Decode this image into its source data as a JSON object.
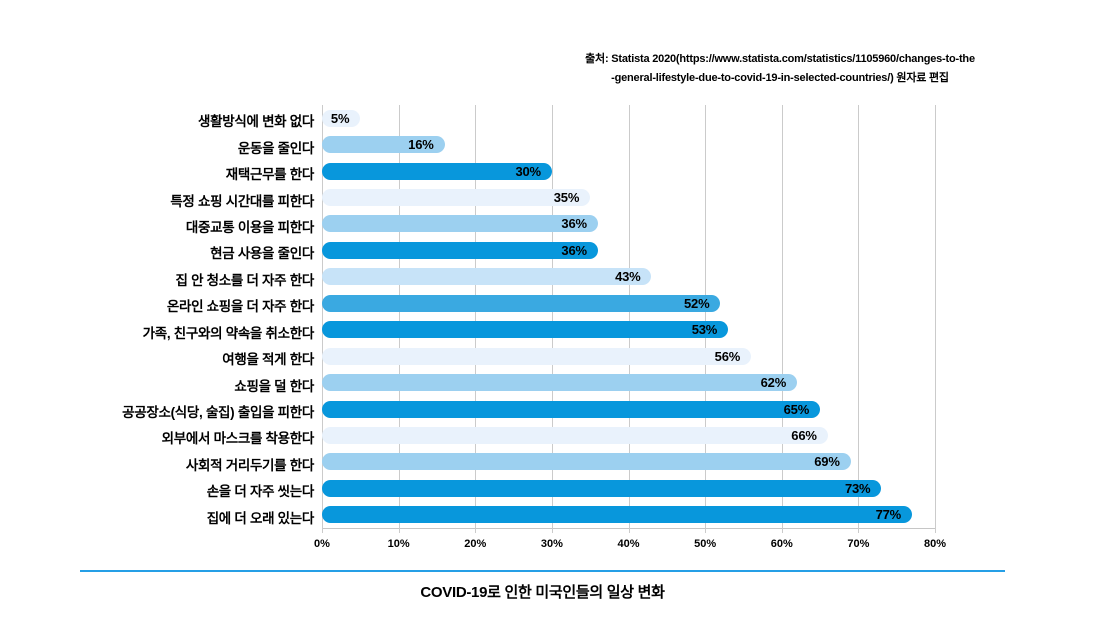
{
  "source": {
    "line1": "출처: Statista 2020(https://www.statista.com/statistics/1105960/changes-to-the",
    "line2": "-general-lifestyle-due-to-covid-19-in-selected-countries/) 원자료 편집"
  },
  "footer": {
    "title": "COVID-19로 인한 미국인들의 일상 변화"
  },
  "colors": {
    "strong_blue": "#0897DC",
    "light_blue": "#9CD0F0",
    "palest_blue": "#E9F2FC",
    "pale_blue": "#C7E3F8",
    "medium_blue": "#3AA9E1",
    "divider_blue": "#259FE6",
    "grid_gray": "#CBCBCB"
  },
  "chart_data": {
    "type": "bar",
    "orientation": "horizontal",
    "title": "COVID-19로 인한 미국인들의 일상 변화",
    "xlim": [
      0,
      80
    ],
    "x_ticks": [
      "0%",
      "10%",
      "20%",
      "30%",
      "40%",
      "50%",
      "60%",
      "70%",
      "80%"
    ],
    "grid": true,
    "legend": false,
    "categories": [
      "생활방식에 변화 없다",
      "운동을 줄인다",
      "재택근무를 한다",
      "특정 쇼핑 시간대를 피한다",
      "대중교통 이용을 피한다",
      "현금 사용을 줄인다",
      "집 안 청소를 더 자주 한다",
      "온라인 쇼핑을 더 자주 한다",
      "가족, 친구와의 약속을 취소한다",
      "여행을 적게 한다",
      "쇼핑을 덜 한다",
      "공공장소(식당, 술집) 출입을 피한다",
      "외부에서 마스크를 착용한다",
      "사회적 거리두기를 한다",
      "손을 더 자주 씻는다",
      "집에 더 오래 있는다"
    ],
    "values": [
      5,
      16,
      30,
      35,
      36,
      36,
      43,
      52,
      53,
      56,
      62,
      65,
      66,
      69,
      73,
      77
    ],
    "value_labels": [
      "5%",
      "16%",
      "30%",
      "35%",
      "36%",
      "36%",
      "43%",
      "52%",
      "53%",
      "56%",
      "62%",
      "65%",
      "66%",
      "69%",
      "73%",
      "77%"
    ],
    "bar_color_names": [
      "palest_blue",
      "light_blue",
      "strong_blue",
      "palest_blue",
      "light_blue",
      "strong_blue",
      "pale_blue",
      "medium_blue",
      "strong_blue",
      "palest_blue",
      "light_blue",
      "strong_blue",
      "palest_blue",
      "light_blue",
      "strong_blue",
      "strong_blue"
    ]
  }
}
